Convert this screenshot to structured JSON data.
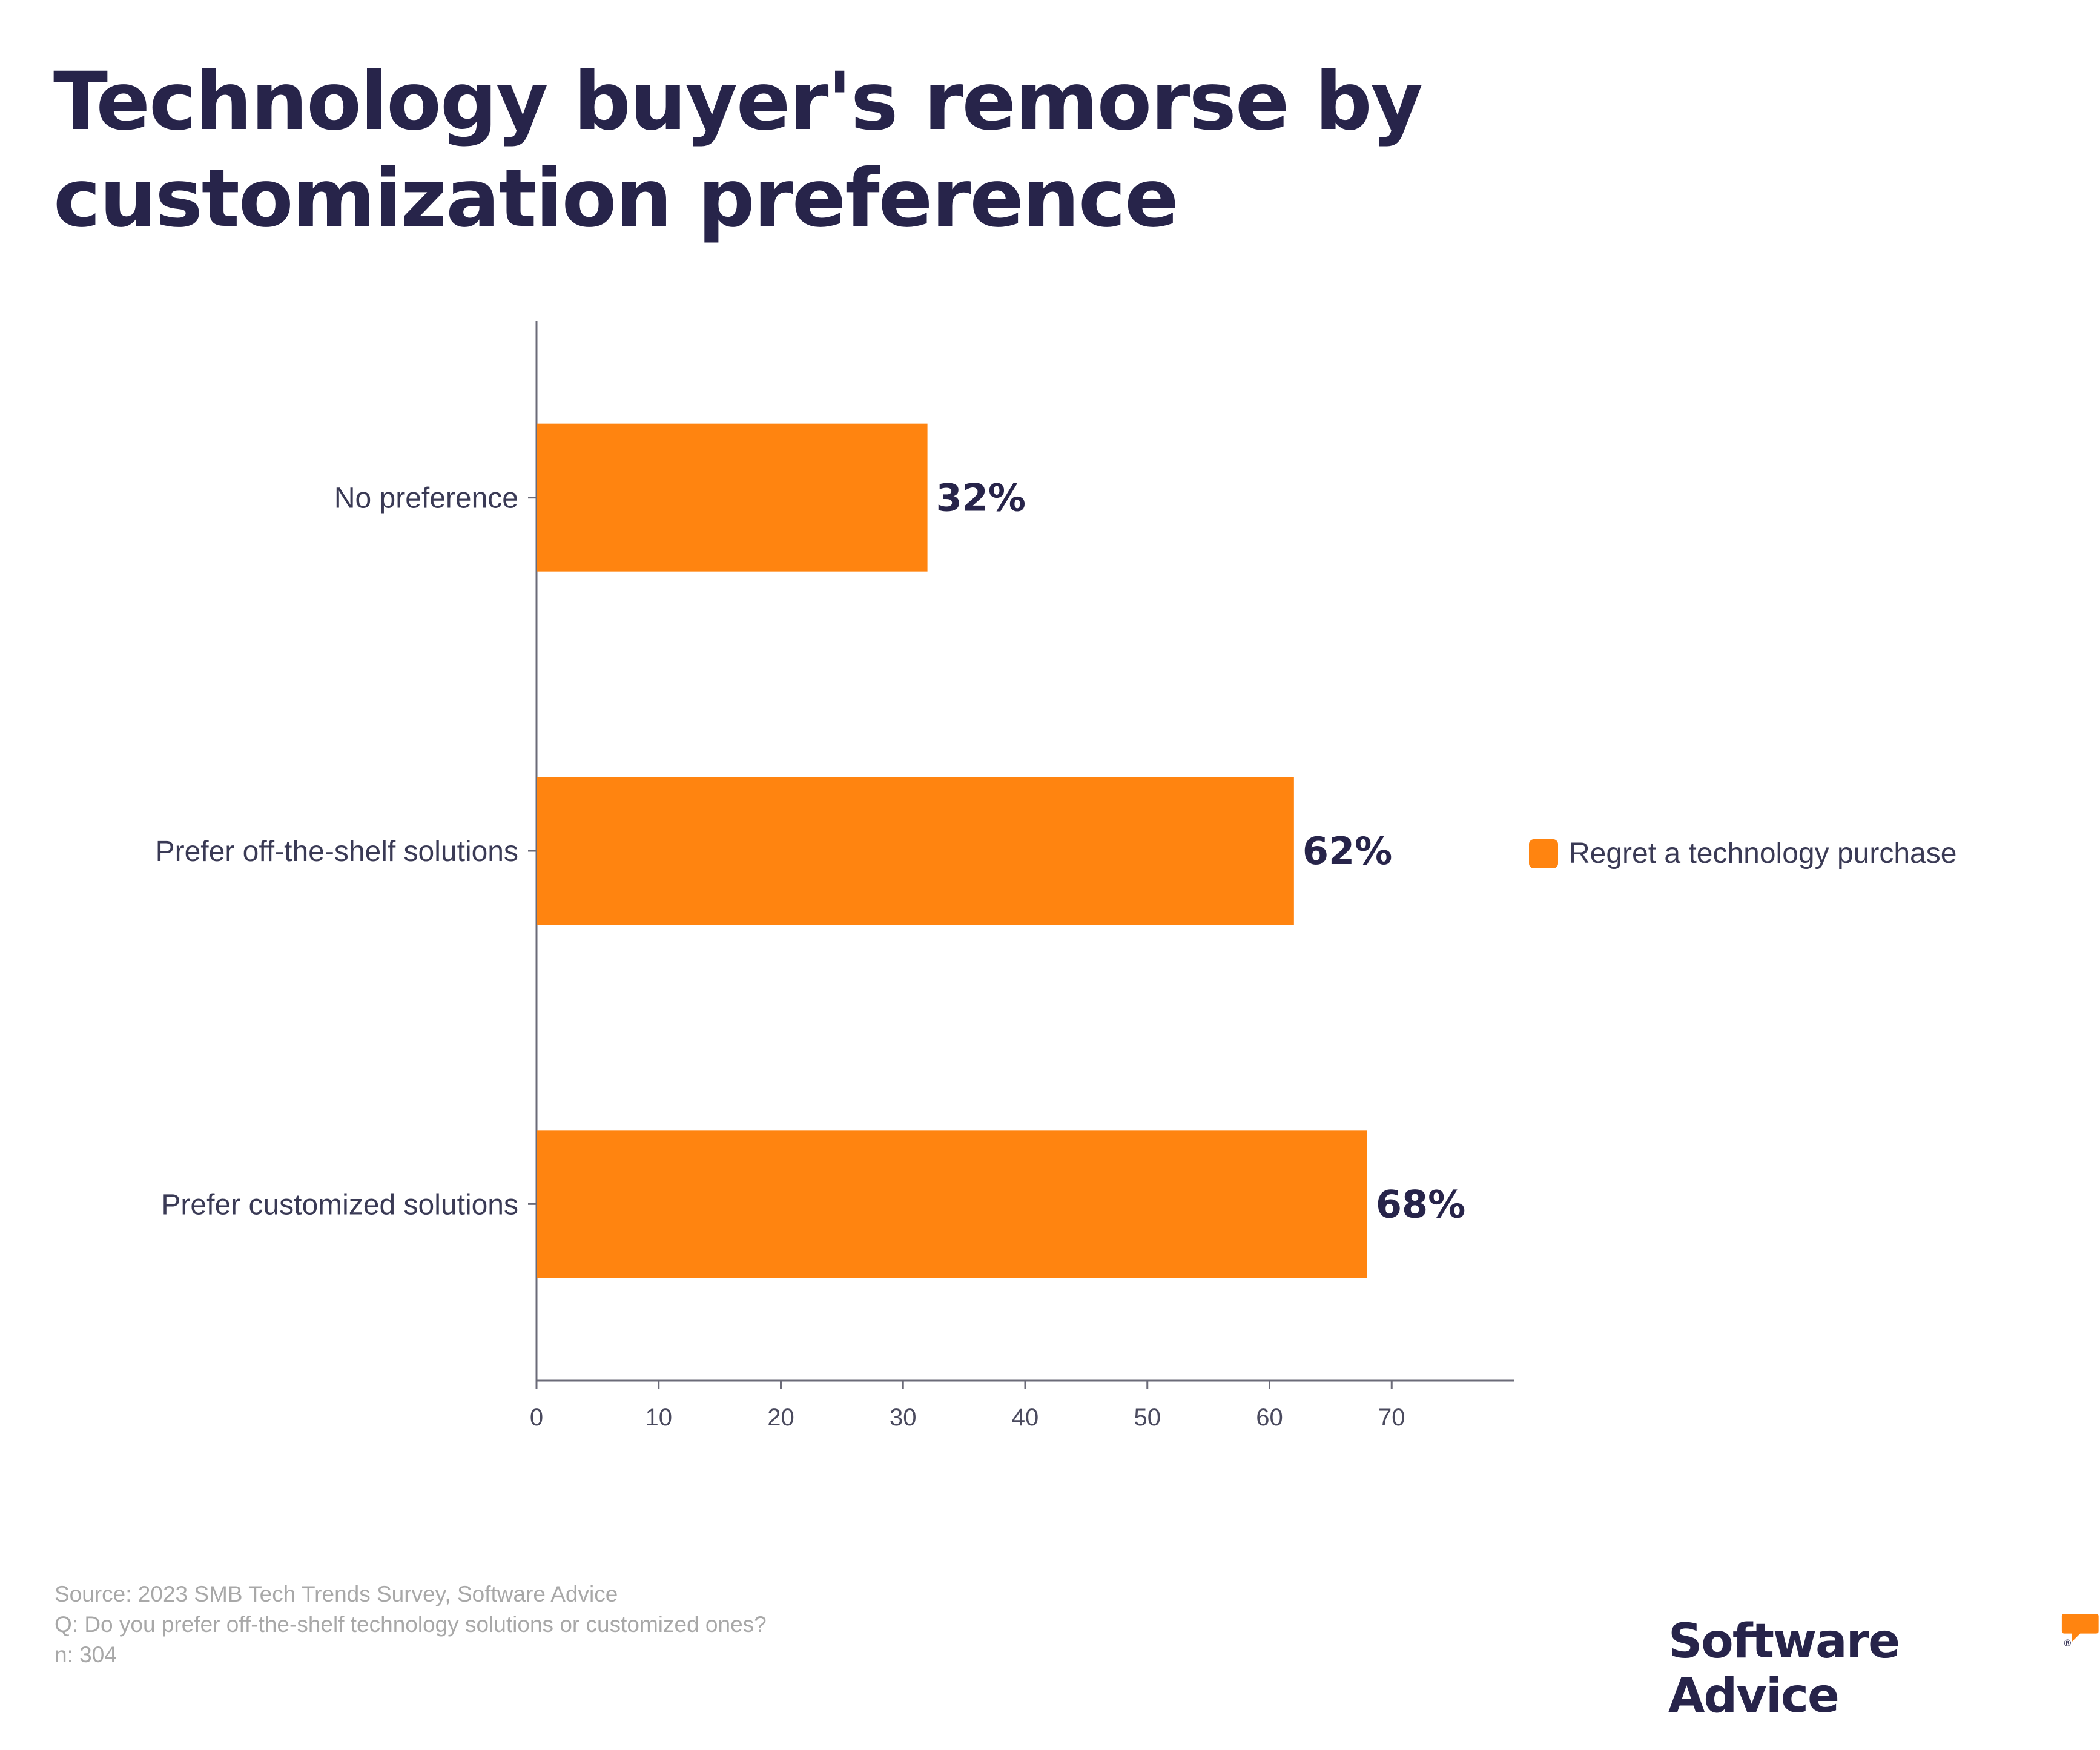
{
  "title": "Technology buyer's remorse by customization preference",
  "colors": {
    "bar": "#FF8410",
    "title": "#27244a",
    "axis": "#5a5a6e",
    "footnote": "#a8a8a8"
  },
  "chart_data": {
    "type": "bar",
    "orientation": "horizontal",
    "categories": [
      "No preference",
      "Prefer off-the-shelf solutions",
      "Prefer customized solutions"
    ],
    "series": [
      {
        "name": "Regret a technology purchase",
        "values": [
          32,
          62,
          68
        ]
      }
    ],
    "data_labels": [
      "32%",
      "62%",
      "68%"
    ],
    "xticks": [
      0,
      10,
      20,
      30,
      40,
      50,
      60,
      70
    ],
    "xlim": [
      0,
      80
    ],
    "grid": false,
    "legend_position": "right"
  },
  "footnotes": [
    "Source: 2023 SMB Tech Trends Survey, Software Advice",
    "Q: Do you prefer off-the-shelf technology solutions or customized ones?",
    "n: 304"
  ],
  "brand": {
    "name": "Software Advice",
    "mark": "®"
  }
}
